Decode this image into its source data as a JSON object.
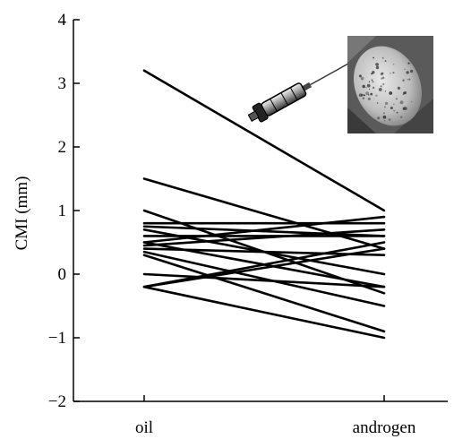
{
  "chart_data": {
    "type": "line",
    "title": "",
    "xlabel": "",
    "ylabel": "CMI (mm)",
    "categories": [
      "oil",
      "androgen"
    ],
    "ylim": [
      -2,
      4
    ],
    "yticks": [
      "−2",
      "−1",
      "0",
      "1",
      "2",
      "3",
      "4"
    ],
    "yticks_values": [
      -2,
      -1,
      0,
      1,
      2,
      3,
      4
    ],
    "grid": false,
    "legend": "none",
    "series": [
      {
        "values": [
          3.2,
          1.0
        ]
      },
      {
        "values": [
          1.5,
          0.4
        ]
      },
      {
        "values": [
          1.0,
          -0.3
        ]
      },
      {
        "values": [
          0.8,
          0.8
        ]
      },
      {
        "values": [
          0.75,
          0.6
        ]
      },
      {
        "values": [
          0.7,
          0.0
        ]
      },
      {
        "values": [
          0.6,
          0.6
        ]
      },
      {
        "values": [
          0.5,
          0.9
        ]
      },
      {
        "values": [
          0.5,
          -0.2
        ]
      },
      {
        "values": [
          0.45,
          0.7
        ]
      },
      {
        "values": [
          0.4,
          0.3
        ]
      },
      {
        "values": [
          0.35,
          -0.5
        ]
      },
      {
        "values": [
          0.3,
          -0.9
        ]
      },
      {
        "values": [
          0.0,
          -0.2
        ]
      },
      {
        "values": [
          -0.2,
          -1.0
        ]
      },
      {
        "values": [
          -0.2,
          0.5
        ]
      },
      {
        "values": [
          -0.2,
          0.4
        ]
      }
    ]
  },
  "illustration": {
    "icons": [
      "syringe-icon",
      "egg-photo"
    ]
  },
  "colors": {
    "line": "#000000",
    "background": "#ffffff"
  }
}
